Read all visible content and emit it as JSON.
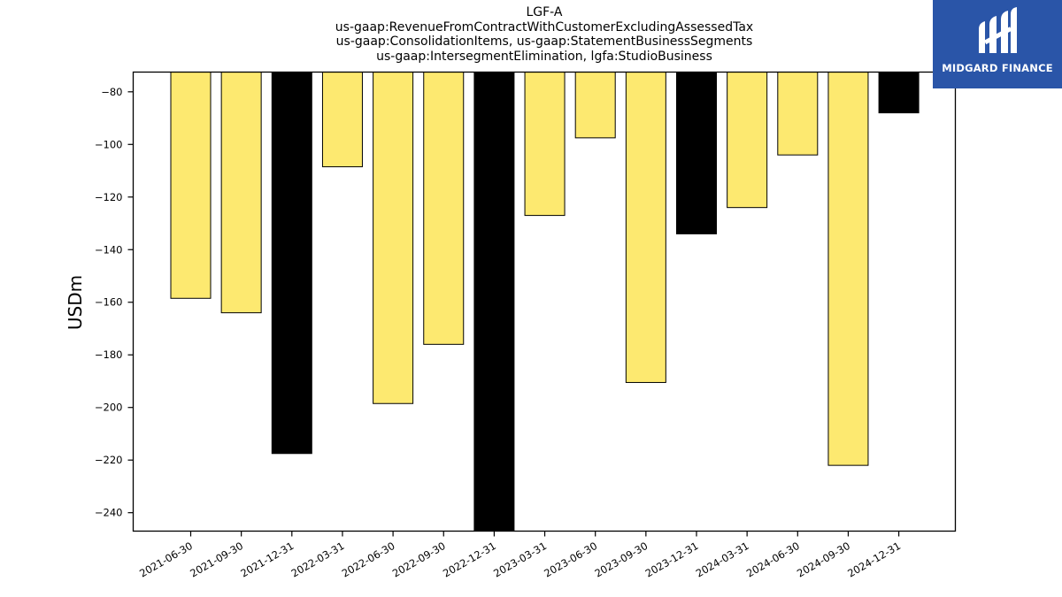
{
  "logo": {
    "text": "MIDGARD FINANCE",
    "background": "#2a55a8",
    "icon": "midgard-logo-icon"
  },
  "chart_data": {
    "type": "bar",
    "title_lines": [
      "LGF-A",
      "us-gaap:RevenueFromContractWithCustomerExcludingAssessedTax",
      "us-gaap:ConsolidationItems, us-gaap:StatementBusinessSegments",
      "us-gaap:IntersegmentElimination, lgfa:StudioBusiness"
    ],
    "xlabel": "",
    "ylabel": "USDm",
    "ylim": [
      -247,
      -72.5
    ],
    "yticks": [
      -80,
      -100,
      -120,
      -140,
      -160,
      -180,
      -200,
      -220,
      -240
    ],
    "categories": [
      "2021-06-30",
      "2021-09-30",
      "2021-12-31",
      "2022-03-31",
      "2022-06-30",
      "2022-09-30",
      "2022-12-31",
      "2023-03-31",
      "2023-06-30",
      "2023-09-30",
      "2023-12-31",
      "2024-03-31",
      "2024-06-30",
      "2024-09-30",
      "2024-12-31"
    ],
    "values": [
      -158.5,
      -164,
      -217.5,
      -108.5,
      -198.5,
      -176,
      -247,
      -127,
      -97.5,
      -190.5,
      -134,
      -124,
      -104,
      -222,
      -88
    ],
    "colors": [
      "#fde970",
      "#fde970",
      "#000000",
      "#fde970",
      "#fde970",
      "#fde970",
      "#000000",
      "#fde970",
      "#fde970",
      "#fde970",
      "#000000",
      "#fde970",
      "#fde970",
      "#fde970",
      "#000000"
    ],
    "grid": false,
    "legend": "none"
  }
}
